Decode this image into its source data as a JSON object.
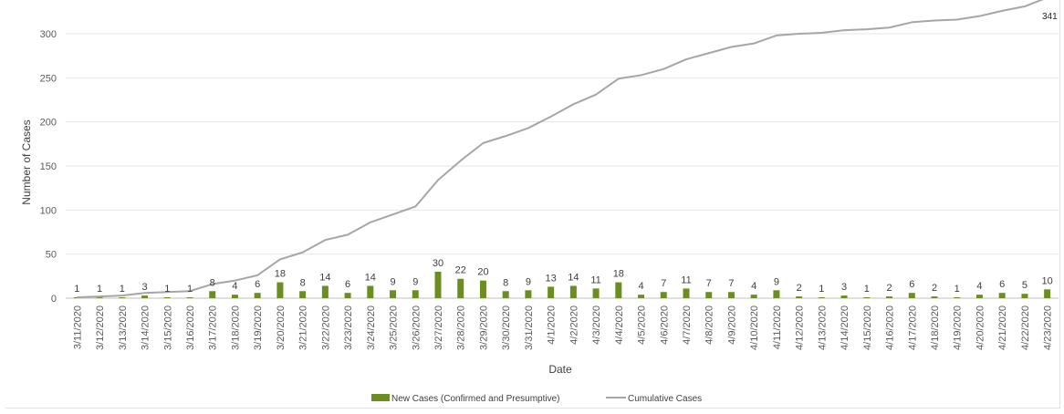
{
  "chart_data": {
    "type": "bar+line",
    "title": "",
    "xlabel": "Date",
    "ylabel": "Number of Cases",
    "ylim": [
      0,
      330
    ],
    "yticks": [
      0,
      50,
      100,
      150,
      200,
      250,
      300
    ],
    "grid": true,
    "legend_position": "bottom",
    "categories": [
      "3/11/2020",
      "3/12/2020",
      "3/13/2020",
      "3/14/2020",
      "3/15/2020",
      "3/16/2020",
      "3/17/2020",
      "3/18/2020",
      "3/19/2020",
      "3/20/2020",
      "3/21/2020",
      "3/22/2020",
      "3/23/2020",
      "3/24/2020",
      "3/25/2020",
      "3/26/2020",
      "3/27/2020",
      "3/28/2020",
      "3/29/2020",
      "3/30/2020",
      "3/31/2020",
      "4/1/2020",
      "4/2/2020",
      "4/3/2020",
      "4/4/2020",
      "4/5/2020",
      "4/6/2020",
      "4/7/2020",
      "4/8/2020",
      "4/9/2020",
      "4/10/2020",
      "4/11/2020",
      "4/12/2020",
      "4/13/2020",
      "4/14/2020",
      "4/15/2020",
      "4/16/2020",
      "4/17/2020",
      "4/18/2020",
      "4/19/2020",
      "4/20/2020",
      "4/21/2020",
      "4/22/2020",
      "4/23/2020"
    ],
    "series": [
      {
        "name": "New Cases (Confirmed and Presumptive)",
        "type": "bar",
        "color": "#6b8e23",
        "values": [
          1,
          1,
          1,
          3,
          1,
          1,
          8,
          4,
          6,
          18,
          8,
          14,
          6,
          14,
          9,
          9,
          30,
          22,
          20,
          8,
          9,
          13,
          14,
          11,
          18,
          4,
          7,
          11,
          7,
          7,
          4,
          9,
          2,
          1,
          3,
          1,
          2,
          6,
          2,
          1,
          4,
          6,
          5,
          10
        ]
      },
      {
        "name": "Cumulative Cases",
        "type": "line",
        "color": "#a6a6a6",
        "values": [
          1,
          2,
          3,
          6,
          7,
          8,
          16,
          20,
          26,
          44,
          52,
          66,
          72,
          86,
          95,
          104,
          134,
          156,
          176,
          184,
          193,
          206,
          220,
          231,
          249,
          253,
          260,
          271,
          278,
          285,
          289,
          298,
          300,
          301,
          304,
          305,
          307,
          313,
          315,
          316,
          320,
          326,
          331,
          341
        ]
      }
    ],
    "end_label": "341"
  }
}
